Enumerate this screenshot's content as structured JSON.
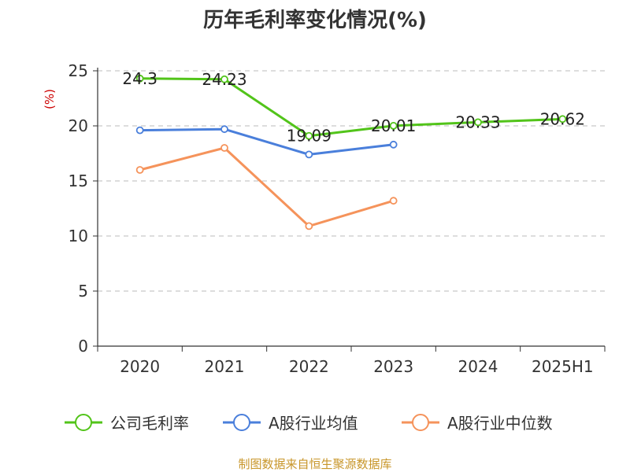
{
  "chart_data": {
    "type": "line",
    "title": "历年毛利率变化情况(%)",
    "ylabel": "(%)",
    "xlabel": "",
    "categories": [
      "2020",
      "2021",
      "2022",
      "2023",
      "2024",
      "2025H1"
    ],
    "ylim": [
      0,
      25
    ],
    "yticks": [
      0,
      5,
      10,
      15,
      20,
      25
    ],
    "grid": true,
    "legend_position": "bottom",
    "series": [
      {
        "name": "公司毛利率",
        "color": "#52c41a",
        "values": [
          24.3,
          24.23,
          19.09,
          20.01,
          20.33,
          20.62
        ],
        "labels": [
          "24.3",
          "24.23",
          "19.09",
          "20.01",
          "20.33",
          "20.62"
        ]
      },
      {
        "name": "A股行业均值",
        "color": "#4a7fdb",
        "values": [
          19.6,
          19.7,
          17.4,
          18.3,
          null,
          null
        ]
      },
      {
        "name": "A股行业中位数",
        "color": "#f5935b",
        "values": [
          16.0,
          18.0,
          10.9,
          13.2,
          null,
          null
        ]
      }
    ],
    "source": "制图数据来自恒生聚源数据库"
  }
}
